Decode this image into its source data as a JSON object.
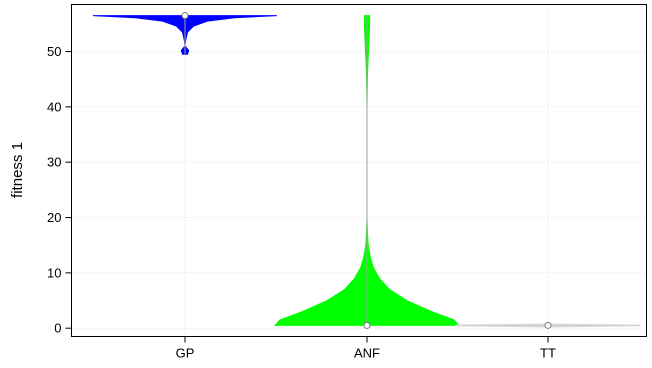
{
  "chart_data": {
    "type": "violin",
    "title": "",
    "xlabel": "",
    "ylabel": "fitness 1",
    "ylim": [
      -1.5,
      58.5
    ],
    "yticks": [
      0,
      10,
      20,
      30,
      40,
      50
    ],
    "grid": true,
    "categories": [
      "GP",
      "ANF",
      "TT"
    ],
    "series": [
      {
        "category": "GP",
        "color": "#0000ff",
        "min": 49.5,
        "max": 56.5,
        "median": 56.5,
        "density_profile": [
          {
            "y": 49.5,
            "w": 0.02
          },
          {
            "y": 50.2,
            "w": 0.03
          },
          {
            "y": 51.0,
            "w": 0.0
          },
          {
            "y": 52.0,
            "w": 0.005
          },
          {
            "y": 53.5,
            "w": 0.02
          },
          {
            "y": 54.6,
            "w": 0.07
          },
          {
            "y": 55.5,
            "w": 0.18
          },
          {
            "y": 56.1,
            "w": 0.4
          },
          {
            "y": 56.5,
            "w": 0.74
          }
        ]
      },
      {
        "category": "ANF",
        "color": "#00ff00",
        "min": 0.5,
        "max": 56.5,
        "median": 0.5,
        "density_profile": [
          {
            "y": 0.5,
            "w": 0.74
          },
          {
            "y": 1.5,
            "w": 0.7
          },
          {
            "y": 3.0,
            "w": 0.52
          },
          {
            "y": 5.0,
            "w": 0.32
          },
          {
            "y": 7.0,
            "w": 0.18
          },
          {
            "y": 9.0,
            "w": 0.1
          },
          {
            "y": 11.0,
            "w": 0.05
          },
          {
            "y": 13.0,
            "w": 0.025
          },
          {
            "y": 15.0,
            "w": 0.01
          },
          {
            "y": 17.0,
            "w": 0.004
          },
          {
            "y": 20.0,
            "w": 0.0
          },
          {
            "y": 40.0,
            "w": 0.0
          },
          {
            "y": 46.0,
            "w": 0.004
          },
          {
            "y": 50.0,
            "w": 0.012
          },
          {
            "y": 53.0,
            "w": 0.018
          },
          {
            "y": 55.5,
            "w": 0.022
          },
          {
            "y": 56.5,
            "w": 0.02
          }
        ]
      },
      {
        "category": "TT",
        "color": "#d3d3d3",
        "min": 0.5,
        "max": 0.5,
        "median": 0.5,
        "density_profile": [
          {
            "y": 0.25,
            "w": 0.0
          },
          {
            "y": 0.45,
            "w": 0.74
          },
          {
            "y": 0.55,
            "w": 0.74
          },
          {
            "y": 0.75,
            "w": 0.0
          }
        ]
      }
    ]
  }
}
